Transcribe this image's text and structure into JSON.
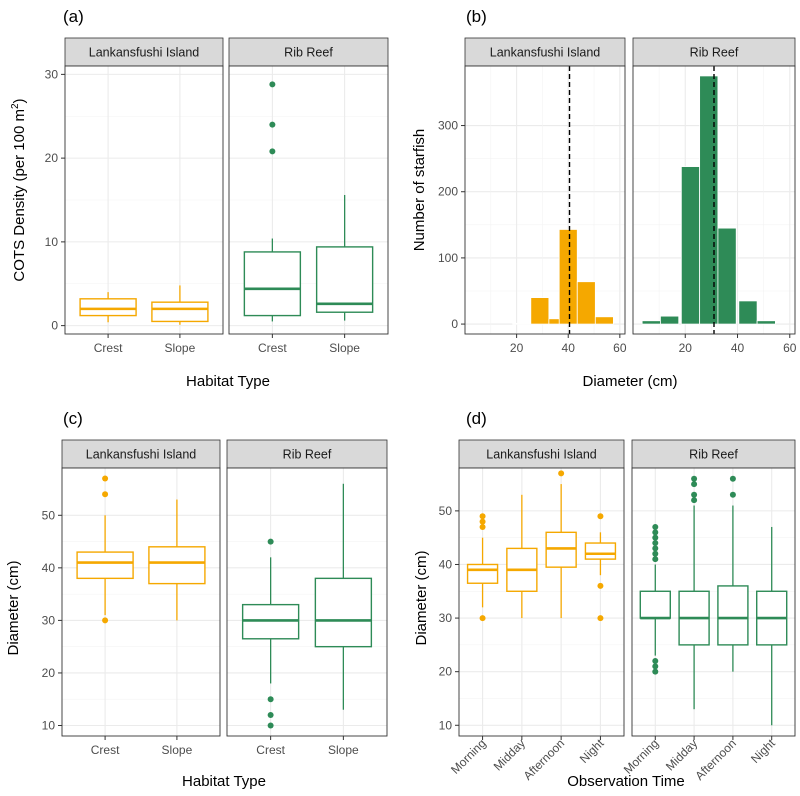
{
  "colors": {
    "lankansfushi": "#F5A800",
    "rib": "#2E8B57",
    "strip_bg": "#D9D9D9",
    "grid": "#EBEBEB",
    "axis_text": "#4D4D4D"
  },
  "chart_data": [
    {
      "id": "a",
      "panel_label": "(a)",
      "type": "box",
      "ylabel": "COTS Density (per 100 m²)",
      "ylabel_main": "COTS Density (per 100 m",
      "ylabel_sup": "2",
      "ylabel_close": ")",
      "xlabel": "Habitat Type",
      "ylim": [
        -1,
        31
      ],
      "yticks": [
        0,
        10,
        20,
        30
      ],
      "facets": [
        {
          "strip": "Lankansfushi Island",
          "color": "lankansfushi",
          "boxes": [
            {
              "cat": "Crest",
              "min": 0.4,
              "q1": 1.2,
              "median": 2.0,
              "q3": 3.2,
              "max": 4.0,
              "outliers": []
            },
            {
              "cat": "Slope",
              "min": 0.1,
              "q1": 0.5,
              "median": 2.0,
              "q3": 2.8,
              "max": 4.8,
              "outliers": []
            }
          ]
        },
        {
          "strip": "Rib Reef",
          "color": "rib",
          "boxes": [
            {
              "cat": "Crest",
              "min": 0.5,
              "q1": 1.2,
              "median": 4.4,
              "q3": 8.8,
              "max": 10.4,
              "outliers": [
                20.8,
                24.0,
                28.8
              ]
            },
            {
              "cat": "Slope",
              "min": 0.6,
              "q1": 1.6,
              "median": 2.6,
              "q3": 9.4,
              "max": 15.6,
              "outliers": []
            }
          ]
        }
      ]
    },
    {
      "id": "b",
      "panel_label": "(b)",
      "type": "bar",
      "ylabel": "Number of starfish",
      "xlabel": "Diameter (cm)",
      "xlim": [
        0,
        62
      ],
      "xticks": [
        20,
        40,
        60
      ],
      "ylim": [
        -15,
        390
      ],
      "yticks": [
        0,
        100,
        200,
        300
      ],
      "bin_width": 7,
      "facets": [
        {
          "strip": "Lankansfushi Island",
          "color": "lankansfushi",
          "mean_line": 40.5,
          "bins": [
            {
              "x": 22,
              "count": 1
            },
            {
              "x": 29,
              "count": 40
            },
            {
              "x": 36,
              "count": 8
            },
            {
              "x": 40,
              "count": 143
            },
            {
              "x": 47,
              "count": 64
            },
            {
              "x": 54,
              "count": 11
            }
          ]
        },
        {
          "strip": "Rib Reef",
          "color": "rib",
          "mean_line": 31,
          "bins": [
            {
              "x": 7,
              "count": 5
            },
            {
              "x": 14,
              "count": 12
            },
            {
              "x": 22,
              "count": 238
            },
            {
              "x": 29,
              "count": 375
            },
            {
              "x": 36,
              "count": 145
            },
            {
              "x": 44,
              "count": 35
            },
            {
              "x": 51,
              "count": 5
            }
          ]
        }
      ]
    },
    {
      "id": "c",
      "panel_label": "(c)",
      "type": "box",
      "ylabel": "Diameter (cm)",
      "xlabel": "Habitat Type",
      "ylim": [
        8,
        59
      ],
      "yticks": [
        10,
        20,
        30,
        40,
        50
      ],
      "facets": [
        {
          "strip": "Lankansfushi Island",
          "color": "lankansfushi",
          "boxes": [
            {
              "cat": "Crest",
              "min": 31,
              "q1": 38,
              "median": 41,
              "q3": 43,
              "max": 50,
              "outliers": [
                30,
                54,
                57
              ]
            },
            {
              "cat": "Slope",
              "min": 30,
              "q1": 37,
              "median": 41,
              "q3": 44,
              "max": 53,
              "outliers": []
            }
          ]
        },
        {
          "strip": "Rib Reef",
          "color": "rib",
          "boxes": [
            {
              "cat": "Crest",
              "min": 18,
              "q1": 26.5,
              "median": 30,
              "q3": 33,
              "max": 42,
              "outliers": [
                10,
                12,
                15,
                45
              ]
            },
            {
              "cat": "Slope",
              "min": 13,
              "q1": 25,
              "median": 30,
              "q3": 38,
              "max": 56,
              "outliers": []
            }
          ]
        }
      ]
    },
    {
      "id": "d",
      "panel_label": "(d)",
      "type": "box",
      "ylabel": "Diameter (cm)",
      "xlabel": "Observation Time",
      "ylim": [
        8,
        58
      ],
      "yticks": [
        10,
        20,
        30,
        40,
        50
      ],
      "rotate_x": true,
      "facets": [
        {
          "strip": "Lankansfushi Island",
          "color": "lankansfushi",
          "boxes": [
            {
              "cat": "Morning",
              "min": 32,
              "q1": 36.5,
              "median": 39,
              "q3": 40,
              "max": 45,
              "outliers": [
                30,
                47,
                48,
                49
              ]
            },
            {
              "cat": "Midday",
              "min": 30,
              "q1": 35,
              "median": 39,
              "q3": 43,
              "max": 53,
              "outliers": []
            },
            {
              "cat": "Afternoon",
              "min": 30,
              "q1": 39.5,
              "median": 43,
              "q3": 46,
              "max": 55,
              "outliers": [
                57
              ]
            },
            {
              "cat": "Night",
              "min": 38,
              "q1": 41,
              "median": 42,
              "q3": 44,
              "max": 46,
              "outliers": [
                30,
                36,
                49
              ]
            }
          ]
        },
        {
          "strip": "Rib Reef",
          "color": "rib",
          "boxes": [
            {
              "cat": "Morning",
              "min": 23,
              "q1": 30,
              "median": 30,
              "q3": 35,
              "max": 40,
              "outliers": [
                20,
                21,
                22,
                41,
                42,
                43,
                44,
                45,
                46,
                47
              ]
            },
            {
              "cat": "Midday",
              "min": 13,
              "q1": 25,
              "median": 30,
              "q3": 35,
              "max": 51,
              "outliers": [
                52,
                53,
                55,
                56
              ]
            },
            {
              "cat": "Afternoon",
              "min": 20,
              "q1": 25,
              "median": 30,
              "q3": 36,
              "max": 51,
              "outliers": [
                53,
                56
              ]
            },
            {
              "cat": "Night",
              "min": 10,
              "q1": 25,
              "median": 30,
              "q3": 35,
              "max": 47,
              "outliers": []
            }
          ]
        }
      ]
    }
  ]
}
